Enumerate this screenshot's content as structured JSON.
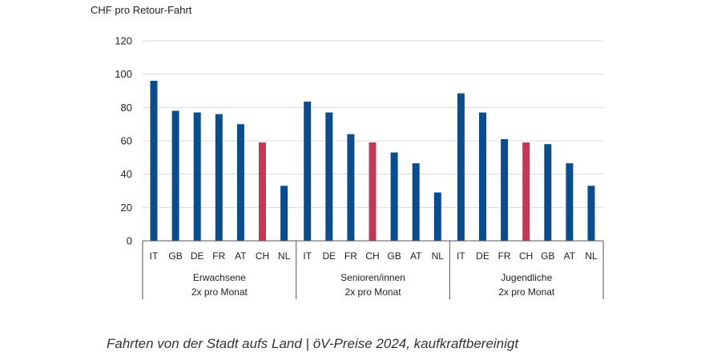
{
  "chart_data": {
    "type": "bar",
    "ylabel": "CHF pro Retour-Fahrt",
    "ylim": [
      0,
      120
    ],
    "yticks": [
      0,
      20,
      40,
      60,
      80,
      100,
      120
    ],
    "grid": true,
    "colors": {
      "default": "#0b4c8c",
      "highlight": "#be3a55"
    },
    "highlight_category": "CH",
    "groups": [
      {
        "label_line1": "Erwachsene",
        "label_line2": "2x pro Monat",
        "categories": [
          "IT",
          "GB",
          "DE",
          "FR",
          "AT",
          "CH",
          "NL"
        ],
        "values": [
          96,
          78,
          77,
          76,
          70,
          59,
          33
        ]
      },
      {
        "label_line1": "Senioren/innen",
        "label_line2": "2x pro Monat",
        "categories": [
          "IT",
          "DE",
          "FR",
          "CH",
          "GB",
          "AT",
          "NL"
        ],
        "values": [
          83.5,
          77,
          64,
          59,
          53,
          46.5,
          29
        ]
      },
      {
        "label_line1": "Jugendliche",
        "label_line2": "2x pro Monat",
        "categories": [
          "IT",
          "DE",
          "FR",
          "CH",
          "GB",
          "AT",
          "NL"
        ],
        "values": [
          88.5,
          77,
          61,
          59,
          58,
          46.5,
          33
        ]
      }
    ]
  },
  "caption": "Fahrten von der Stadt aufs Land | öV-Preise 2024, kaufkraftbereinigt"
}
